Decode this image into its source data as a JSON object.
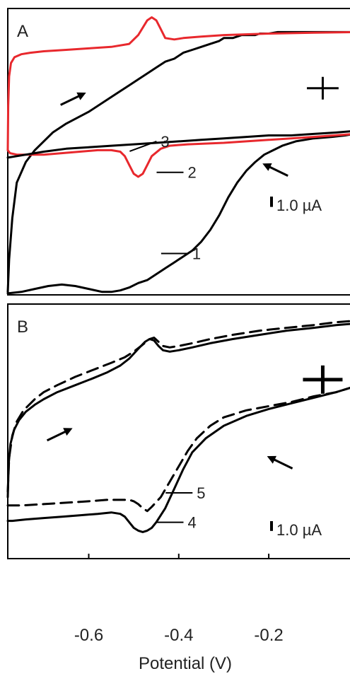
{
  "chart_data": [
    {
      "panel": "A",
      "type": "line",
      "xlabel": "Potential (V)",
      "x_ticks": [
        -0.6,
        -0.4,
        -0.2
      ],
      "xlim": [
        -0.78,
        -0.01
      ],
      "ylim": [
        -5.4,
        4.3
      ],
      "scale_bar": {
        "label": "1.0 µA",
        "value": 1.0
      },
      "cross_marker": {
        "x": -0.08,
        "y": 1.6
      },
      "curve_labels": [
        {
          "text": "1",
          "x": -0.37,
          "y": -4.0
        },
        {
          "text": "2",
          "x": -0.38,
          "y": -1.25
        },
        {
          "text": "3",
          "x": -0.44,
          "y": -0.2
        }
      ],
      "arrows": [
        {
          "x": -0.64,
          "y": 1.2,
          "dir": "right"
        },
        {
          "x": -0.18,
          "y": -1.2,
          "dir": "left"
        }
      ],
      "series": [
        {
          "name": "1",
          "color": "#000000",
          "dash": false,
          "x": [
            -0.78,
            -0.777,
            -0.77,
            -0.76,
            -0.74,
            -0.72,
            -0.7,
            -0.68,
            -0.65,
            -0.6,
            -0.56,
            -0.53,
            -0.51,
            -0.49,
            -0.47,
            -0.45,
            -0.43,
            -0.41,
            -0.39,
            -0.37,
            -0.35,
            -0.33,
            -0.31,
            -0.3,
            -0.28,
            -0.26,
            -0.25,
            -0.24,
            -0.23,
            -0.22,
            -0.21,
            -0.2,
            -0.18,
            -0.16,
            -0.12,
            -0.08,
            -0.04,
            -0.01
          ],
          "y": [
            -5.3,
            -4.2,
            -2.8,
            -1.6,
            -0.9,
            -0.5,
            -0.2,
            0.1,
            0.4,
            0.8,
            1.2,
            1.5,
            1.7,
            1.9,
            2.1,
            2.3,
            2.5,
            2.6,
            2.8,
            2.9,
            3.0,
            3.1,
            3.2,
            3.3,
            3.3,
            3.4,
            3.4,
            3.4,
            3.4,
            3.45,
            3.45,
            3.45,
            3.5,
            3.5,
            3.5,
            3.5,
            3.5,
            3.5
          ]
        },
        {
          "name": "1-reverse",
          "color": "#000000",
          "dash": false,
          "x": [
            -0.01,
            -0.03,
            -0.06,
            -0.1,
            -0.14,
            -0.17,
            -0.19,
            -0.21,
            -0.23,
            -0.25,
            -0.27,
            -0.29,
            -0.31,
            -0.33,
            -0.35,
            -0.37,
            -0.39,
            -0.41,
            -0.43,
            -0.45,
            -0.47,
            -0.49,
            -0.51,
            -0.53,
            -0.55,
            -0.57,
            -0.6,
            -0.63,
            -0.66,
            -0.69,
            -0.72,
            -0.75,
            -0.78
          ],
          "y": [
            0.05,
            0.0,
            -0.05,
            -0.1,
            -0.2,
            -0.35,
            -0.5,
            -0.65,
            -0.9,
            -1.2,
            -1.6,
            -2.1,
            -2.7,
            -3.2,
            -3.6,
            -3.9,
            -4.1,
            -4.3,
            -4.5,
            -4.7,
            -4.9,
            -5.0,
            -5.15,
            -5.25,
            -5.3,
            -5.3,
            -5.2,
            -5.1,
            -5.05,
            -5.1,
            -5.2,
            -5.3,
            -5.35
          ]
        },
        {
          "name": "2",
          "color": "#e8282d",
          "dash": false,
          "x": [
            -0.78,
            -0.779,
            -0.777,
            -0.773,
            -0.765,
            -0.75,
            -0.73,
            -0.7,
            -0.65,
            -0.6,
            -0.55,
            -0.51,
            -0.49,
            -0.47,
            -0.46,
            -0.45,
            -0.44,
            -0.43,
            -0.41,
            -0.39,
            -0.35,
            -0.3,
            -0.2,
            -0.1,
            -0.01
          ],
          "y": [
            -0.5,
            1.0,
            2.0,
            2.45,
            2.65,
            2.75,
            2.8,
            2.85,
            2.9,
            2.95,
            3.0,
            3.1,
            3.4,
            3.9,
            4.0,
            3.9,
            3.6,
            3.3,
            3.25,
            3.3,
            3.35,
            3.4,
            3.45,
            3.48,
            3.5
          ]
        },
        {
          "name": "2-reverse",
          "color": "#e8282d",
          "dash": false,
          "x": [
            -0.01,
            -0.1,
            -0.2,
            -0.3,
            -0.38,
            -0.42,
            -0.44,
            -0.46,
            -0.47,
            -0.48,
            -0.49,
            -0.5,
            -0.51,
            -0.52,
            -0.53,
            -0.55,
            -0.58,
            -0.62,
            -0.66,
            -0.7,
            -0.73,
            -0.76,
            -0.775,
            -0.78
          ],
          "y": [
            0.05,
            -0.05,
            -0.15,
            -0.25,
            -0.3,
            -0.35,
            -0.45,
            -0.7,
            -1.0,
            -1.3,
            -1.4,
            -1.3,
            -1.0,
            -0.7,
            -0.55,
            -0.5,
            -0.5,
            -0.55,
            -0.6,
            -0.65,
            -0.65,
            -0.65,
            -0.6,
            -0.5
          ]
        },
        {
          "name": "3",
          "color": "#000000",
          "dash": false,
          "x": [
            -0.78,
            -0.76,
            -0.74,
            -0.7,
            -0.65,
            -0.6,
            -0.55,
            -0.5,
            -0.45,
            -0.4,
            -0.35,
            -0.3,
            -0.25,
            -0.2,
            -0.15,
            -0.1,
            -0.05,
            -0.01
          ],
          "y": [
            -0.75,
            -0.7,
            -0.65,
            -0.55,
            -0.45,
            -0.4,
            -0.35,
            -0.3,
            -0.25,
            -0.2,
            -0.15,
            -0.1,
            -0.05,
            0.0,
            0.0,
            0.05,
            0.1,
            0.15
          ]
        }
      ]
    },
    {
      "panel": "B",
      "type": "line",
      "xlabel": "Potential (V)",
      "x_ticks": [
        -0.6,
        -0.4,
        -0.2
      ],
      "xlim": [
        -0.78,
        -0.01
      ],
      "ylim": [
        -5.4,
        3.7
      ],
      "scale_bar": {
        "label": "1.0 µA",
        "value": 1.0
      },
      "cross_marker": {
        "x": -0.08,
        "y": 1.0
      },
      "curve_labels": [
        {
          "text": "4",
          "x": -0.38,
          "y": -4.1
        },
        {
          "text": "5",
          "x": -0.36,
          "y": -3.05
        }
      ],
      "arrows": [
        {
          "x": -0.67,
          "y": -1.0,
          "dir": "right"
        },
        {
          "x": -0.17,
          "y": -2.0,
          "dir": "left"
        }
      ],
      "series": [
        {
          "name": "4",
          "color": "#000000",
          "dash": false,
          "x": [
            -0.78,
            -0.778,
            -0.774,
            -0.766,
            -0.755,
            -0.74,
            -0.72,
            -0.7,
            -0.67,
            -0.63,
            -0.59,
            -0.56,
            -0.53,
            -0.51,
            -0.49,
            -0.475,
            -0.465,
            -0.455,
            -0.445,
            -0.435,
            -0.42,
            -0.4,
            -0.37,
            -0.33,
            -0.28,
            -0.22,
            -0.16,
            -0.1,
            -0.05,
            -0.01
          ],
          "y": [
            -3.2,
            -2.0,
            -1.3,
            -0.8,
            -0.45,
            -0.15,
            0.1,
            0.3,
            0.55,
            0.8,
            1.05,
            1.25,
            1.5,
            1.75,
            2.1,
            2.35,
            2.45,
            2.4,
            2.2,
            2.05,
            2.0,
            2.05,
            2.15,
            2.3,
            2.45,
            2.6,
            2.75,
            2.85,
            2.95,
            3.0
          ]
        },
        {
          "name": "4-reverse",
          "color": "#000000",
          "dash": false,
          "x": [
            -0.01,
            -0.05,
            -0.1,
            -0.15,
            -0.2,
            -0.25,
            -0.3,
            -0.34,
            -0.37,
            -0.39,
            -0.41,
            -0.43,
            -0.45,
            -0.46,
            -0.47,
            -0.48,
            -0.49,
            -0.5,
            -0.51,
            -0.52,
            -0.53,
            -0.55,
            -0.58,
            -0.62,
            -0.66,
            -0.7,
            -0.74,
            -0.77,
            -0.78
          ],
          "y": [
            0.75,
            0.55,
            0.35,
            0.15,
            -0.05,
            -0.3,
            -0.65,
            -1.1,
            -1.6,
            -2.2,
            -2.9,
            -3.6,
            -4.1,
            -4.3,
            -4.4,
            -4.45,
            -4.4,
            -4.3,
            -4.1,
            -3.9,
            -3.8,
            -3.75,
            -3.8,
            -3.85,
            -3.9,
            -3.95,
            -4.0,
            -4.05,
            -4.05
          ]
        },
        {
          "name": "5",
          "color": "#000000",
          "dash": true,
          "x": [
            -0.78,
            -0.777,
            -0.77,
            -0.76,
            -0.745,
            -0.72,
            -0.7,
            -0.67,
            -0.63,
            -0.59,
            -0.55,
            -0.52,
            -0.5,
            -0.48,
            -0.465,
            -0.455,
            -0.445,
            -0.435,
            -0.42,
            -0.4,
            -0.37,
            -0.33,
            -0.28,
            -0.22,
            -0.16,
            -0.1,
            -0.05,
            -0.01
          ],
          "y": [
            -3.0,
            -1.8,
            -1.0,
            -0.5,
            -0.1,
            0.3,
            0.55,
            0.8,
            1.1,
            1.35,
            1.6,
            1.8,
            2.0,
            2.25,
            2.45,
            2.5,
            2.35,
            2.2,
            2.15,
            2.2,
            2.3,
            2.45,
            2.6,
            2.75,
            2.85,
            2.95,
            3.05,
            3.1
          ]
        },
        {
          "name": "5-reverse",
          "color": "#000000",
          "dash": true,
          "x": [
            -0.01,
            -0.05,
            -0.1,
            -0.15,
            -0.2,
            -0.25,
            -0.3,
            -0.33,
            -0.36,
            -0.38,
            -0.4,
            -0.42,
            -0.44,
            -0.46,
            -0.47,
            -0.48,
            -0.49,
            -0.5,
            -0.51,
            -0.53,
            -0.56,
            -0.6,
            -0.65,
            -0.7,
            -0.75,
            -0.78
          ],
          "y": [
            0.75,
            0.55,
            0.4,
            0.2,
            0.05,
            -0.1,
            -0.35,
            -0.65,
            -1.1,
            -1.55,
            -2.1,
            -2.65,
            -3.2,
            -3.55,
            -3.7,
            -3.6,
            -3.45,
            -3.35,
            -3.3,
            -3.3,
            -3.3,
            -3.35,
            -3.4,
            -3.45,
            -3.5,
            -3.5
          ]
        }
      ]
    }
  ]
}
